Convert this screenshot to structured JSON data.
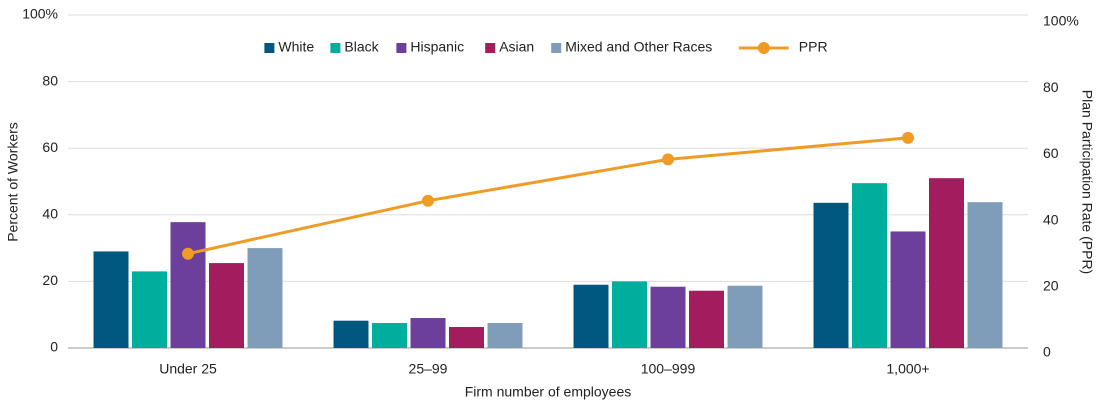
{
  "chart_data": {
    "type": "bar",
    "categories": [
      "Under 25",
      "25–99",
      "100–999",
      "1,000+"
    ],
    "x_label": "Firm number of employees",
    "y_label": "Percent of Workers",
    "y2_label": "Plan Participation Rate (PPR)",
    "ylim": [
      0,
      100
    ],
    "yticks": [
      0,
      20,
      40,
      60,
      80,
      {
        "value": 100,
        "label": "100%"
      }
    ],
    "y2lim": [
      0,
      100
    ],
    "y2ticks": [
      0,
      20,
      40,
      60,
      80,
      {
        "value": 100,
        "label": "100%"
      }
    ],
    "grid": true,
    "legend": "top",
    "series": [
      {
        "name": "White",
        "color": "#00577f",
        "values": [
          29,
          8.2,
          19,
          43.6
        ]
      },
      {
        "name": "Black",
        "color": "#00ae9e",
        "values": [
          23,
          7.5,
          20,
          49.5
        ]
      },
      {
        "name": "Hispanic",
        "color": "#6b3f9b",
        "values": [
          37.8,
          9,
          18.4,
          35
        ]
      },
      {
        "name": "Asian",
        "color": "#a31c5e",
        "values": [
          25.5,
          6.3,
          17.2,
          51
        ]
      },
      {
        "name": "Mixed and Other Races",
        "color": "#7f9cb9",
        "values": [
          30,
          7.5,
          18.7,
          43.8
        ]
      },
      {
        "name": "PPR",
        "type": "line",
        "axis": "y2",
        "color": "#f09b26",
        "values": [
          30,
          46,
          58.5,
          65
        ]
      }
    ]
  }
}
